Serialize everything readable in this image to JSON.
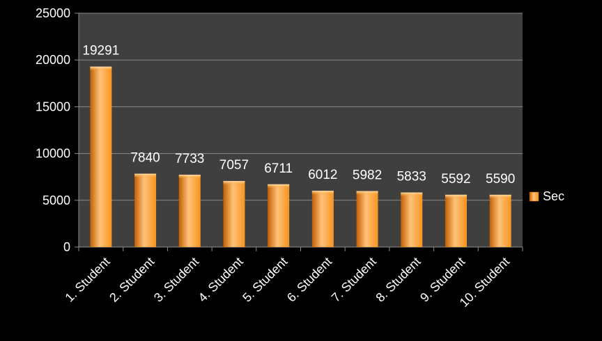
{
  "chart_data": {
    "type": "bar",
    "title": "",
    "xlabel": "",
    "ylabel": "",
    "categories": [
      "1. Student",
      "2. Student",
      "3. Student",
      "4. Student",
      "5. Student",
      "6. Student",
      "7. Student",
      "8. Student",
      "9. Student",
      "10. Student"
    ],
    "series": [
      {
        "name": "Sec",
        "values": [
          19291,
          7840,
          7733,
          7057,
          6711,
          6012,
          5982,
          5833,
          5592,
          5590
        ]
      }
    ],
    "data_labels": [
      "19291",
      "7840",
      "7733",
      "7057",
      "6711",
      "6012",
      "5982",
      "5833",
      "5592",
      "5590"
    ],
    "ylim": [
      0,
      25000
    ],
    "yticks": [
      0,
      5000,
      10000,
      15000,
      20000,
      25000
    ],
    "ytick_labels": [
      "0",
      "5000",
      "10000",
      "15000",
      "20000",
      "25000"
    ],
    "grid": true,
    "legend": {
      "position": "right",
      "entries": [
        "Sec"
      ]
    },
    "colors": {
      "background": "#000000",
      "plot_area": "#3f3f3f",
      "grid": "#8c8c8c",
      "bar_light": "#ffc27a",
      "bar_mid": "#f7941d",
      "bar_dark": "#c25f00",
      "text": "#ffffff"
    }
  }
}
